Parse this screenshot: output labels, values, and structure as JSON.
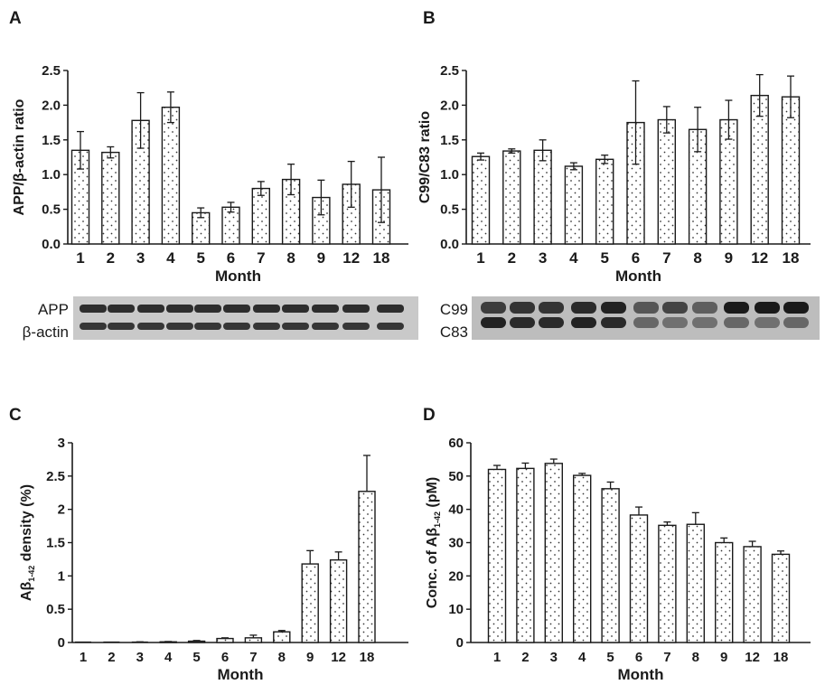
{
  "panel_letters": [
    "A",
    "B",
    "C",
    "D"
  ],
  "blot_labels": {
    "A": [
      "APP",
      "β-actin"
    ],
    "B": [
      "C99",
      "C83"
    ]
  },
  "colors": {
    "bar_fill": "#ffffff",
    "bar_stroke": "#1a1a1a",
    "dot": "#333333",
    "blot_bg": "#c9c9c9",
    "band": "#1a1a1a"
  },
  "chart_data": [
    {
      "panel": "A",
      "type": "bar",
      "title": "",
      "xlabel": "Month",
      "ylabel": "APP/β-actin ratio",
      "categories": [
        "1",
        "2",
        "3",
        "4",
        "5",
        "6",
        "7",
        "8",
        "9",
        "12",
        "18"
      ],
      "values": [
        1.35,
        1.32,
        1.78,
        1.97,
        0.45,
        0.53,
        0.8,
        0.93,
        0.67,
        0.86,
        0.78
      ],
      "errors": [
        0.27,
        0.08,
        0.4,
        0.22,
        0.07,
        0.07,
        0.1,
        0.22,
        0.25,
        0.33,
        0.47
      ],
      "error_style": "both",
      "ylim": [
        0,
        2.5
      ],
      "yticks": [
        "0.0",
        "0.5",
        "1.0",
        "1.5",
        "2.0",
        "2.5"
      ],
      "grid": false
    },
    {
      "panel": "B",
      "type": "bar",
      "title": "",
      "xlabel": "Month",
      "ylabel": "C99/C83 ratio",
      "categories": [
        "1",
        "2",
        "3",
        "4",
        "5",
        "6",
        "7",
        "8",
        "9",
        "12",
        "18"
      ],
      "values": [
        1.26,
        1.34,
        1.35,
        1.12,
        1.22,
        1.75,
        1.79,
        1.65,
        1.79,
        2.14,
        2.12
      ],
      "errors": [
        0.05,
        0.03,
        0.15,
        0.05,
        0.06,
        0.6,
        0.19,
        0.32,
        0.28,
        0.3,
        0.3
      ],
      "error_style": "both",
      "ylim": [
        0,
        2.5
      ],
      "yticks": [
        "0.0",
        "0.5",
        "1.0",
        "1.5",
        "2.0",
        "2.5"
      ],
      "grid": false
    },
    {
      "panel": "C",
      "type": "bar",
      "title": "",
      "xlabel": "Month",
      "ylabel_parts": [
        "Aβ",
        "1-42",
        " density (%)"
      ],
      "categories": [
        "1",
        "2",
        "3",
        "4",
        "5",
        "6",
        "7",
        "8",
        "9",
        "12",
        "18"
      ],
      "values": [
        0,
        0,
        0.005,
        0.01,
        0.02,
        0.06,
        0.07,
        0.16,
        1.18,
        1.24,
        2.27
      ],
      "errors": [
        0,
        0,
        0.005,
        0.005,
        0.01,
        0.01,
        0.04,
        0.02,
        0.2,
        0.12,
        0.54
      ],
      "error_style": "up",
      "ylim": [
        0,
        3
      ],
      "yticks": [
        "0",
        "0.5",
        "1",
        "1.5",
        "2",
        "2.5",
        "3"
      ],
      "grid": false
    },
    {
      "panel": "D",
      "type": "bar",
      "title": "",
      "xlabel": "Month",
      "ylabel_parts": [
        "Conc. of Aβ",
        "1-42",
        " (pM)"
      ],
      "categories": [
        "1",
        "2",
        "3",
        "4",
        "5",
        "6",
        "7",
        "8",
        "9",
        "12",
        "18"
      ],
      "values": [
        52,
        52.3,
        53.8,
        50.2,
        46.2,
        38.3,
        35.2,
        35.5,
        30,
        28.8,
        26.5
      ],
      "errors": [
        1.2,
        1.6,
        1.3,
        0.6,
        2.0,
        2.4,
        1.0,
        3.5,
        1.4,
        1.6,
        1.0
      ],
      "error_style": "up",
      "ylim": [
        0,
        60
      ],
      "yticks": [
        "0",
        "10",
        "20",
        "30",
        "40",
        "50",
        "60"
      ],
      "grid": false
    }
  ]
}
